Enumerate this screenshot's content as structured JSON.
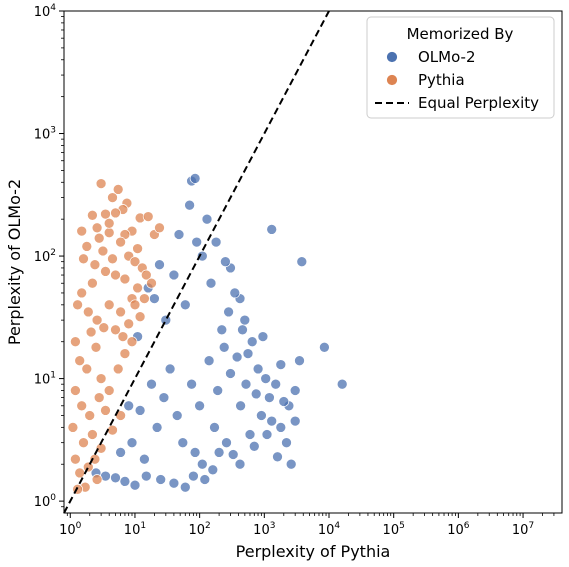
{
  "chart_data": {
    "type": "scatter",
    "title": "",
    "xlabel": "Perplexity of Pythia",
    "ylabel": "Perplexity of OLMo-2",
    "xscale": "log",
    "yscale": "log",
    "xlim": [
      0.8,
      40000000
    ],
    "ylim": [
      0.8,
      10000
    ],
    "x_ticks": [
      {
        "value": 1,
        "base": "10",
        "exp": "0"
      },
      {
        "value": 10,
        "base": "10",
        "exp": "1"
      },
      {
        "value": 100,
        "base": "10",
        "exp": "2"
      },
      {
        "value": 1000,
        "base": "10",
        "exp": "3"
      },
      {
        "value": 10000,
        "base": "10",
        "exp": "4"
      },
      {
        "value": 100000,
        "base": "10",
        "exp": "5"
      },
      {
        "value": 1000000,
        "base": "10",
        "exp": "6"
      },
      {
        "value": 10000000,
        "base": "10",
        "exp": "7"
      }
    ],
    "y_ticks": [
      {
        "value": 1,
        "base": "10",
        "exp": "0"
      },
      {
        "value": 10,
        "base": "10",
        "exp": "1"
      },
      {
        "value": 100,
        "base": "10",
        "exp": "2"
      },
      {
        "value": 1000,
        "base": "10",
        "exp": "3"
      },
      {
        "value": 10000,
        "base": "10",
        "exp": "4"
      }
    ],
    "grid": false,
    "legend": {
      "title": "Memorized By",
      "placement": "top-right",
      "entries": [
        {
          "label": "OLMo-2",
          "marker": "circle",
          "color": "#4C72B0"
        },
        {
          "label": "Pythia",
          "marker": "circle",
          "color": "#DD8452"
        },
        {
          "label": "Equal Perplexity",
          "marker": "dashed-line",
          "color": "#000000"
        }
      ]
    },
    "reference_line": {
      "name": "Equal Perplexity",
      "style": "dashed",
      "equation": "y = x"
    },
    "series": [
      {
        "name": "OLMo-2",
        "color": "#4C72B0",
        "points": [
          [
            75,
            410
          ],
          [
            85,
            430
          ],
          [
            1300,
            165
          ],
          [
            3800,
            90
          ],
          [
            16000,
            9
          ],
          [
            8500,
            18
          ],
          [
            3500,
            14
          ],
          [
            3000,
            8
          ],
          [
            2400,
            6
          ],
          [
            1800,
            13
          ],
          [
            1200,
            7
          ],
          [
            900,
            5
          ],
          [
            1100,
            3.5
          ],
          [
            1600,
            2.3
          ],
          [
            950,
            22
          ],
          [
            800,
            12
          ],
          [
            650,
            20
          ],
          [
            500,
            30
          ],
          [
            420,
            45
          ],
          [
            300,
            80
          ],
          [
            250,
            90
          ],
          [
            180,
            130
          ],
          [
            150,
            60
          ],
          [
            130,
            200
          ],
          [
            110,
            100
          ],
          [
            90,
            130
          ],
          [
            70,
            260
          ],
          [
            60,
            40
          ],
          [
            40,
            70
          ],
          [
            30,
            30
          ],
          [
            1800,
            4
          ],
          [
            2200,
            3
          ],
          [
            3000,
            4.5
          ],
          [
            2600,
            2
          ],
          [
            700,
            2.8
          ],
          [
            600,
            3.5
          ],
          [
            520,
            9
          ],
          [
            430,
            6
          ],
          [
            380,
            15
          ],
          [
            300,
            11
          ],
          [
            220,
            25
          ],
          [
            200,
            2.5
          ],
          [
            160,
            1.8
          ],
          [
            120,
            1.5
          ],
          [
            80,
            1.6
          ],
          [
            60,
            1.3
          ],
          [
            40,
            1.4
          ],
          [
            25,
            1.5
          ],
          [
            15,
            1.6
          ],
          [
            10,
            1.35
          ],
          [
            7,
            1.45
          ],
          [
            5,
            1.55
          ],
          [
            3.5,
            1.6
          ],
          [
            2.5,
            1.7
          ],
          [
            350,
            50
          ],
          [
            280,
            35
          ],
          [
            240,
            18
          ],
          [
            190,
            8
          ],
          [
            170,
            4
          ],
          [
            140,
            14
          ],
          [
            100,
            6
          ],
          [
            75,
            9
          ],
          [
            55,
            3
          ],
          [
            45,
            5
          ],
          [
            35,
            12
          ],
          [
            28,
            7
          ],
          [
            22,
            4
          ],
          [
            18,
            9
          ],
          [
            14,
            2.2
          ],
          [
            12,
            5.5
          ],
          [
            11,
            22
          ],
          [
            9,
            3
          ],
          [
            8,
            6
          ],
          [
            6,
            2.5
          ],
          [
            16,
            55
          ],
          [
            20,
            45
          ],
          [
            24,
            85
          ],
          [
            48,
            150
          ],
          [
            420,
            2
          ],
          [
            330,
            2.4
          ],
          [
            260,
            3
          ],
          [
            110,
            2
          ],
          [
            85,
            2.5
          ],
          [
            1500,
            9
          ],
          [
            2000,
            6.5
          ],
          [
            1300,
            4.5
          ],
          [
            1050,
            10
          ],
          [
            750,
            7.5
          ],
          [
            560,
            16
          ],
          [
            460,
            25
          ]
        ]
      },
      {
        "name": "Pythia",
        "color": "#DD8452",
        "points": [
          [
            3,
            390
          ],
          [
            5.5,
            350
          ],
          [
            4.5,
            300
          ],
          [
            7.5,
            270
          ],
          [
            6.5,
            240
          ],
          [
            5,
            225
          ],
          [
            3.5,
            220
          ],
          [
            2.2,
            215
          ],
          [
            12,
            205
          ],
          [
            16,
            210
          ],
          [
            9,
            160
          ],
          [
            7,
            150
          ],
          [
            6,
            130
          ],
          [
            4,
            155
          ],
          [
            2.8,
            140
          ],
          [
            1.8,
            120
          ],
          [
            1.6,
            95
          ],
          [
            2.4,
            85
          ],
          [
            3.2,
            110
          ],
          [
            4.5,
            95
          ],
          [
            8,
            100
          ],
          [
            10,
            90
          ],
          [
            13,
            80
          ],
          [
            15,
            70
          ],
          [
            18,
            60
          ],
          [
            11,
            55
          ],
          [
            9,
            45
          ],
          [
            7,
            65
          ],
          [
            5,
            70
          ],
          [
            3.5,
            75
          ],
          [
            2.2,
            60
          ],
          [
            1.5,
            50
          ],
          [
            1.3,
            40
          ],
          [
            1.9,
            35
          ],
          [
            2.6,
            30
          ],
          [
            4,
            40
          ],
          [
            6,
            35
          ],
          [
            8,
            28
          ],
          [
            12,
            32
          ],
          [
            1.2,
            20
          ],
          [
            1.4,
            14
          ],
          [
            1.8,
            12
          ],
          [
            2.5,
            18
          ],
          [
            3,
            10
          ],
          [
            4,
            8
          ],
          [
            5.5,
            12
          ],
          [
            7,
            16
          ],
          [
            9,
            20
          ],
          [
            1.2,
            8
          ],
          [
            1.5,
            6
          ],
          [
            2,
            5
          ],
          [
            2.8,
            7
          ],
          [
            3.5,
            5.5
          ],
          [
            1.1,
            4
          ],
          [
            1.6,
            3
          ],
          [
            2.2,
            3.5
          ],
          [
            3,
            2.7
          ],
          [
            4.5,
            3.8
          ],
          [
            6,
            5
          ],
          [
            1.2,
            2.2
          ],
          [
            1.4,
            1.7
          ],
          [
            1.9,
            1.9
          ],
          [
            2.4,
            2.2
          ],
          [
            1.7,
            1.3
          ],
          [
            2.6,
            1.5
          ],
          [
            1.3,
            1.25
          ],
          [
            5,
            25
          ],
          [
            6.5,
            22
          ],
          [
            3.3,
            26
          ],
          [
            2.1,
            24
          ],
          [
            10,
            40
          ],
          [
            14,
            45
          ],
          [
            20,
            150
          ],
          [
            24,
            170
          ],
          [
            11,
            115
          ],
          [
            4,
            185
          ],
          [
            2.6,
            170
          ],
          [
            1.5,
            160
          ]
        ]
      }
    ]
  }
}
